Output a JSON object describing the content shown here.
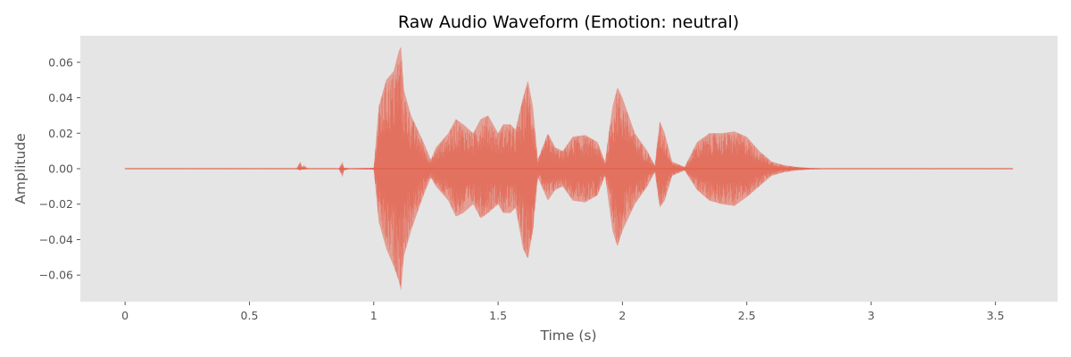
{
  "chart_data": {
    "type": "line",
    "title": "Raw Audio Waveform (Emotion: neutral)",
    "xlabel": "Time (s)",
    "ylabel": "Amplitude",
    "xlim": [
      -0.18,
      3.75
    ],
    "ylim": [
      -0.075,
      0.075
    ],
    "x_ticks": [
      0,
      0.5,
      1,
      1.5,
      2,
      2.5,
      3,
      3.5
    ],
    "x_tick_labels": [
      "0",
      "0.5",
      "1",
      "1.5",
      "2",
      "2.5",
      "3",
      "3.5"
    ],
    "y_ticks": [
      0.06,
      0.04,
      0.02,
      0.0,
      -0.02,
      -0.04,
      -0.06
    ],
    "y_tick_labels": [
      "0.06",
      "0.04",
      "0.02",
      "0.00",
      "−0.02",
      "−0.04",
      "−0.06"
    ],
    "grid": false,
    "background_color": "#e5e5e5",
    "series_color": "#e24a33",
    "duration_s": 3.57,
    "series": [
      {
        "envelope": {
          "time": [
            0.0,
            0.69,
            0.705,
            0.71,
            0.72,
            0.73,
            0.74,
            0.86,
            0.875,
            0.88,
            0.9,
            1.0,
            1.02,
            1.05,
            1.08,
            1.1,
            1.11,
            1.12,
            1.15,
            1.2,
            1.23,
            1.25,
            1.3,
            1.33,
            1.36,
            1.4,
            1.43,
            1.46,
            1.5,
            1.52,
            1.55,
            1.57,
            1.6,
            1.62,
            1.64,
            1.66,
            1.7,
            1.73,
            1.76,
            1.8,
            1.85,
            1.9,
            1.93,
            1.96,
            1.98,
            2.0,
            2.05,
            2.1,
            2.13,
            2.15,
            2.17,
            2.2,
            2.25,
            2.3,
            2.35,
            2.4,
            2.45,
            2.5,
            2.55,
            2.6,
            2.65,
            2.7,
            2.75,
            2.8,
            3.57
          ],
          "upper": [
            0.0003,
            0.0003,
            0.004,
            0.001,
            0.002,
            0.0005,
            0.0003,
            0.0003,
            0.004,
            0.0005,
            0.0003,
            0.0005,
            0.035,
            0.05,
            0.055,
            0.066,
            0.069,
            0.045,
            0.03,
            0.015,
            0.005,
            0.012,
            0.02,
            0.028,
            0.025,
            0.02,
            0.028,
            0.03,
            0.02,
            0.025,
            0.025,
            0.022,
            0.04,
            0.05,
            0.035,
            0.005,
            0.02,
            0.012,
            0.01,
            0.018,
            0.019,
            0.015,
            0.004,
            0.035,
            0.046,
            0.04,
            0.02,
            0.01,
            0.002,
            0.027,
            0.02,
            0.004,
            0.001,
            0.015,
            0.02,
            0.02,
            0.021,
            0.018,
            0.01,
            0.004,
            0.002,
            0.001,
            0.0005,
            0.0003,
            0.0003
          ],
          "lower": [
            -0.0003,
            -0.0003,
            -0.001,
            -0.0005,
            -0.0005,
            -0.0003,
            -0.0003,
            -0.0003,
            -0.005,
            -0.001,
            -0.0003,
            -0.0005,
            -0.03,
            -0.045,
            -0.055,
            -0.063,
            -0.069,
            -0.05,
            -0.035,
            -0.015,
            -0.005,
            -0.01,
            -0.018,
            -0.027,
            -0.025,
            -0.02,
            -0.028,
            -0.025,
            -0.02,
            -0.025,
            -0.025,
            -0.022,
            -0.045,
            -0.051,
            -0.035,
            -0.005,
            -0.018,
            -0.012,
            -0.01,
            -0.018,
            -0.019,
            -0.015,
            -0.004,
            -0.035,
            -0.044,
            -0.035,
            -0.02,
            -0.01,
            -0.002,
            -0.022,
            -0.018,
            -0.004,
            -0.001,
            -0.012,
            -0.018,
            -0.02,
            -0.021,
            -0.016,
            -0.01,
            -0.004,
            -0.002,
            -0.001,
            -0.0005,
            -0.0003,
            -0.0003
          ]
        }
      }
    ]
  }
}
